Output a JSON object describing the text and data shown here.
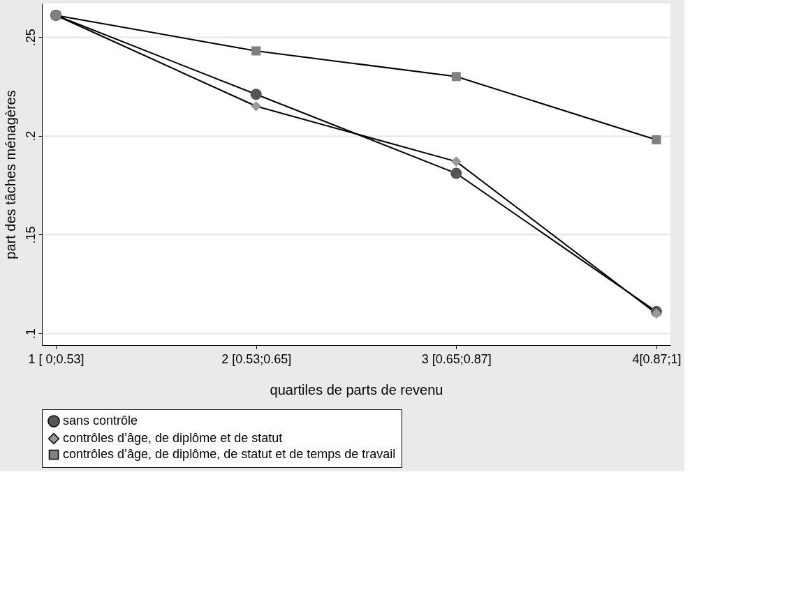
{
  "chart_data": {
    "type": "line",
    "xlabel": "quartiles de parts de revenu",
    "ylabel": "part des tâches ménagères",
    "categories": [
      "1 [ 0;0.53]",
      "2 [0.53;0.65]",
      "3 [0.65;0.87]",
      "4[0.87;1]"
    ],
    "series": [
      {
        "name": "sans contrôle",
        "color": "#555555",
        "marker": "circle",
        "values": [
          0.261,
          0.221,
          0.181,
          0.111
        ]
      },
      {
        "name": "contrôles d’âge, de diplôme et de statut",
        "color": "#999999",
        "marker": "diamond",
        "values": [
          0.261,
          0.215,
          0.187,
          0.11
        ]
      },
      {
        "name": "contrôles d’âge, de diplôme, de statut et de temps de travail",
        "color": "#808080",
        "marker": "square",
        "values": [
          0.261,
          0.243,
          0.23,
          0.198
        ]
      }
    ],
    "ylim": [
      0.094,
      0.267
    ],
    "yticks": [
      {
        "value": 0.1,
        "label": ".1"
      },
      {
        "value": 0.15,
        "label": ".15"
      },
      {
        "value": 0.2,
        "label": ".2"
      },
      {
        "value": 0.25,
        "label": ".25"
      }
    ],
    "grid": "y",
    "legend": "bottom",
    "line_style": "solid"
  }
}
